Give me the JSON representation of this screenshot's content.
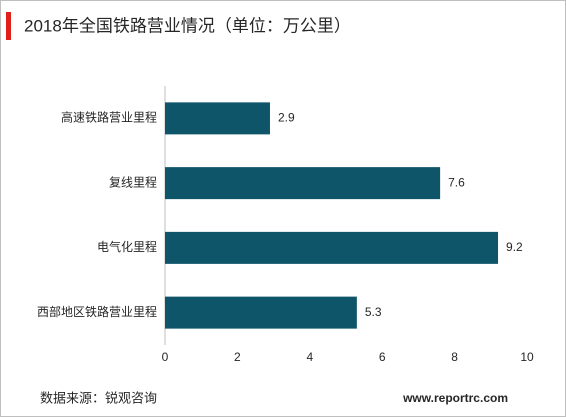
{
  "chart_data": {
    "type": "bar",
    "orientation": "horizontal",
    "title": "2018年全国铁路营业情况（单位：万公里）",
    "categories": [
      "高速铁路营业里程",
      "复线里程",
      "电气化里程",
      "西部地区铁路营业里程"
    ],
    "values": [
      2.9,
      7.6,
      9.2,
      5.3
    ],
    "color": "#0f5569",
    "xlim": [
      0,
      10
    ],
    "xticks": [
      0,
      2,
      4,
      6,
      8,
      10
    ],
    "grid": false,
    "source": "数据来源：锐观咨询",
    "website": "www.reportrc.com"
  }
}
